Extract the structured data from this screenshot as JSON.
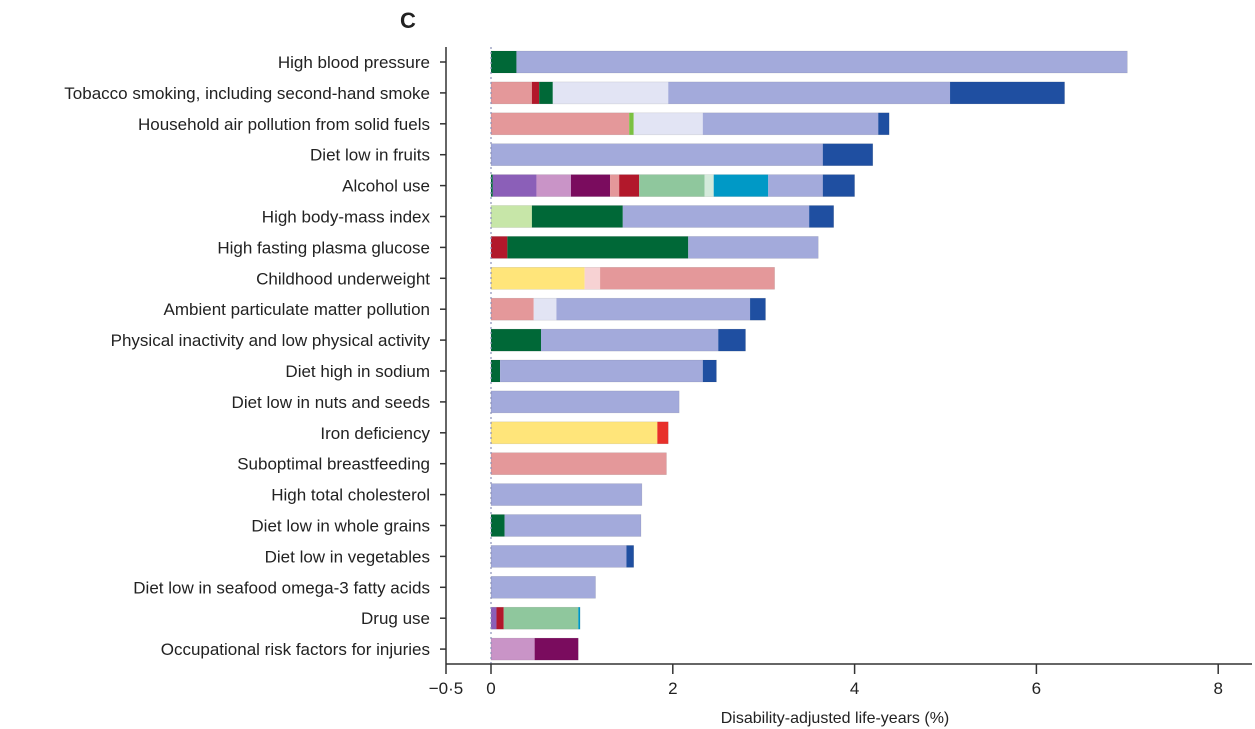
{
  "panel_label": "C",
  "chart_data": {
    "type": "bar",
    "orientation": "horizontal",
    "stacked": true,
    "xlabel": "Disability-adjusted life-years (%)",
    "xlim": [
      -0.5,
      8
    ],
    "xticks": [
      -0.5,
      0,
      2,
      4,
      6,
      8
    ],
    "xtick_labels": [
      "−0·5",
      "0",
      "2",
      "4",
      "6",
      "8"
    ],
    "grid": false,
    "rows": [
      {
        "label": "High blood pressure",
        "segments": [
          {
            "value": 0.28,
            "color": "#006837"
          },
          {
            "value": 6.72,
            "color": "#a3aadb"
          }
        ]
      },
      {
        "label": "Tobacco smoking, including second-hand smoke",
        "segments": [
          {
            "value": 0.45,
            "color": "#e4989a"
          },
          {
            "value": 0.08,
            "color": "#b2182b"
          },
          {
            "value": 0.15,
            "color": "#006837"
          },
          {
            "value": 1.27,
            "color": "#e2e4f4"
          },
          {
            "value": 3.1,
            "color": "#a3aadb"
          },
          {
            "value": 1.26,
            "color": "#1f4fa1"
          }
        ]
      },
      {
        "label": "Household air pollution from solid fuels",
        "segments": [
          {
            "value": 1.52,
            "color": "#e4989a"
          },
          {
            "value": 0.05,
            "color": "#7bc142"
          },
          {
            "value": 0.76,
            "color": "#e2e4f4"
          },
          {
            "value": 1.93,
            "color": "#a3aadb"
          },
          {
            "value": 0.12,
            "color": "#1f4fa1"
          }
        ]
      },
      {
        "label": "Diet low in fruits",
        "segments": [
          {
            "value": 3.65,
            "color": "#a3aadb"
          },
          {
            "value": 0.55,
            "color": "#1f4fa1"
          }
        ]
      },
      {
        "label": "Alcohol use",
        "segments": [
          {
            "value": 0.02,
            "color": "#006837"
          },
          {
            "value": 0.48,
            "color": "#8b5fb8"
          },
          {
            "value": 0.38,
            "color": "#c994c7"
          },
          {
            "value": 0.43,
            "color": "#7a0c5e"
          },
          {
            "value": 0.1,
            "color": "#e4989a"
          },
          {
            "value": 0.22,
            "color": "#b2182b"
          },
          {
            "value": 0.72,
            "color": "#8fc79d"
          },
          {
            "value": 0.1,
            "color": "#d4eadb"
          },
          {
            "value": 0.6,
            "color": "#0099c6"
          },
          {
            "value": 0.6,
            "color": "#a3aadb"
          },
          {
            "value": 0.35,
            "color": "#1f4fa1"
          }
        ]
      },
      {
        "label": "High body-mass index",
        "segments": [
          {
            "value": 0.45,
            "color": "#c7e6a8"
          },
          {
            "value": 1.0,
            "color": "#006837"
          },
          {
            "value": 2.05,
            "color": "#a3aadb"
          },
          {
            "value": 0.27,
            "color": "#1f4fa1"
          }
        ]
      },
      {
        "label": "High fasting plasma glucose",
        "segments": [
          {
            "value": 0.18,
            "color": "#b2182b"
          },
          {
            "value": 1.99,
            "color": "#006837"
          },
          {
            "value": 1.43,
            "color": "#a3aadb"
          }
        ]
      },
      {
        "label": "Childhood underweight",
        "segments": [
          {
            "value": 1.03,
            "color": "#ffe57a"
          },
          {
            "value": 0.17,
            "color": "#f7d2d3"
          },
          {
            "value": 1.92,
            "color": "#e4989a"
          }
        ]
      },
      {
        "label": "Ambient particulate matter pollution",
        "segments": [
          {
            "value": 0.47,
            "color": "#e4989a"
          },
          {
            "value": 0.25,
            "color": "#e2e4f4"
          },
          {
            "value": 2.13,
            "color": "#a3aadb"
          },
          {
            "value": 0.17,
            "color": "#1f4fa1"
          }
        ]
      },
      {
        "label": "Physical inactivity and low physical activity",
        "segments": [
          {
            "value": 0.55,
            "color": "#006837"
          },
          {
            "value": 1.95,
            "color": "#a3aadb"
          },
          {
            "value": 0.3,
            "color": "#1f4fa1"
          }
        ]
      },
      {
        "label": "Diet high in sodium",
        "segments": [
          {
            "value": 0.1,
            "color": "#006837"
          },
          {
            "value": 2.23,
            "color": "#a3aadb"
          },
          {
            "value": 0.15,
            "color": "#1f4fa1"
          }
        ]
      },
      {
        "label": "Diet low in nuts and seeds",
        "segments": [
          {
            "value": 2.07,
            "color": "#a3aadb"
          }
        ]
      },
      {
        "label": "Iron deficiency",
        "segments": [
          {
            "value": 1.83,
            "color": "#ffe57a"
          },
          {
            "value": 0.12,
            "color": "#e8302a"
          }
        ]
      },
      {
        "label": "Suboptimal breastfeeding",
        "segments": [
          {
            "value": 1.93,
            "color": "#e4989a"
          }
        ]
      },
      {
        "label": "High total cholesterol",
        "segments": [
          {
            "value": 1.66,
            "color": "#a3aadb"
          }
        ]
      },
      {
        "label": "Diet low in whole grains",
        "segments": [
          {
            "value": 0.15,
            "color": "#006837"
          },
          {
            "value": 1.5,
            "color": "#a3aadb"
          }
        ]
      },
      {
        "label": "Diet low in vegetables",
        "segments": [
          {
            "value": 1.49,
            "color": "#a3aadb"
          },
          {
            "value": 0.08,
            "color": "#1f4fa1"
          }
        ]
      },
      {
        "label": "Diet low in seafood omega-3 fatty acids",
        "segments": [
          {
            "value": 1.15,
            "color": "#a3aadb"
          }
        ]
      },
      {
        "label": "Drug use",
        "segments": [
          {
            "value": 0.06,
            "color": "#8b5fb8"
          },
          {
            "value": 0.08,
            "color": "#b2182b"
          },
          {
            "value": 0.82,
            "color": "#8fc79d"
          },
          {
            "value": 0.02,
            "color": "#0099c6"
          }
        ]
      },
      {
        "label": "Occupational risk factors for injuries",
        "segments": [
          {
            "value": 0.48,
            "color": "#c994c7"
          },
          {
            "value": 0.48,
            "color": "#7a0c5e"
          }
        ]
      }
    ]
  }
}
